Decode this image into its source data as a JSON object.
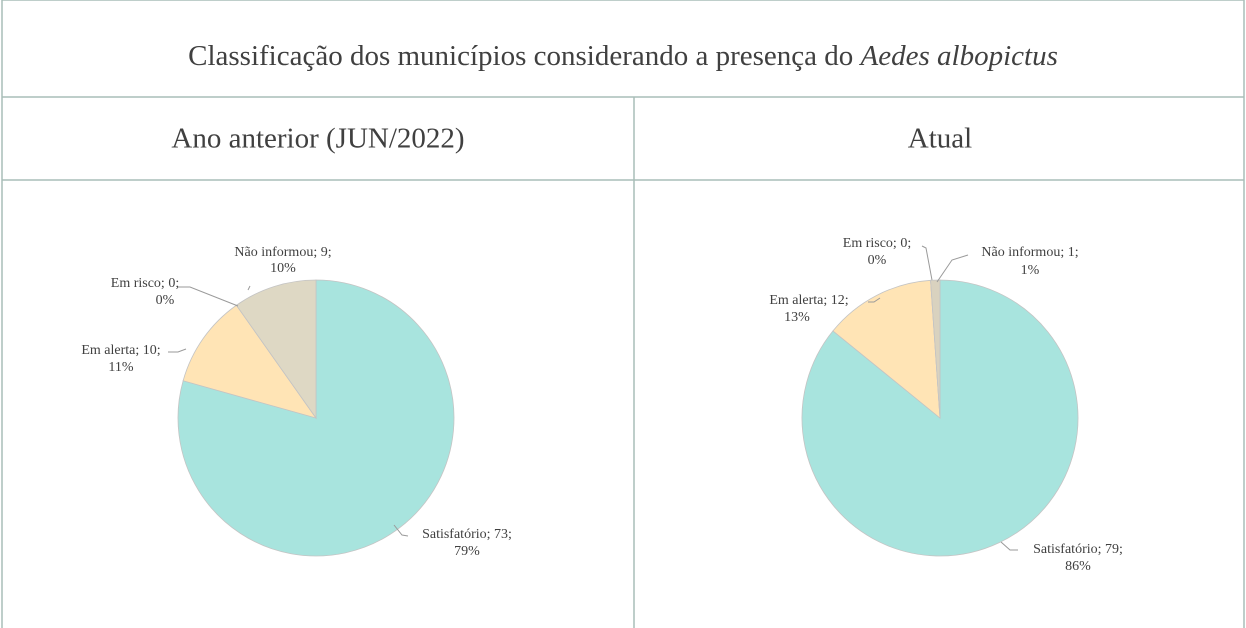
{
  "title": {
    "text": "Classificação dos municípios considerando a presença do",
    "species": "Aedes albopictus"
  },
  "chart_data": [
    {
      "type": "pie",
      "title": "Ano anterior (JUN/2022)",
      "categories": [
        "Satisfatório",
        "Em alerta",
        "Em risco",
        "Não informou"
      ],
      "values": [
        73,
        10,
        0,
        9
      ],
      "value_labels": [
        [
          "Satisfatório; 73;",
          "79%"
        ],
        [
          "Em alerta; 10;",
          "11%"
        ],
        [
          "Em risco; 0;",
          "0%"
        ],
        [
          "Não informou; 9;",
          "10%"
        ]
      ],
      "colors": [
        "#a8e4de",
        "#ffe4b5",
        "#f4b183",
        "#ded8c4"
      ]
    },
    {
      "type": "pie",
      "title": "Atual",
      "categories": [
        "Satisfatório",
        "Em alerta",
        "Em risco",
        "Não informou"
      ],
      "values": [
        79,
        12,
        0,
        1
      ],
      "value_labels": [
        [
          "Satisfatório; 79;",
          "86%"
        ],
        [
          "Em alerta; 12;",
          "13%"
        ],
        [
          "Em risco; 0;",
          "0%"
        ],
        [
          "Não informou; 1;",
          "1%"
        ]
      ],
      "colors": [
        "#a8e4de",
        "#ffe4b5",
        "#f4b183",
        "#d9d2bf"
      ]
    }
  ]
}
